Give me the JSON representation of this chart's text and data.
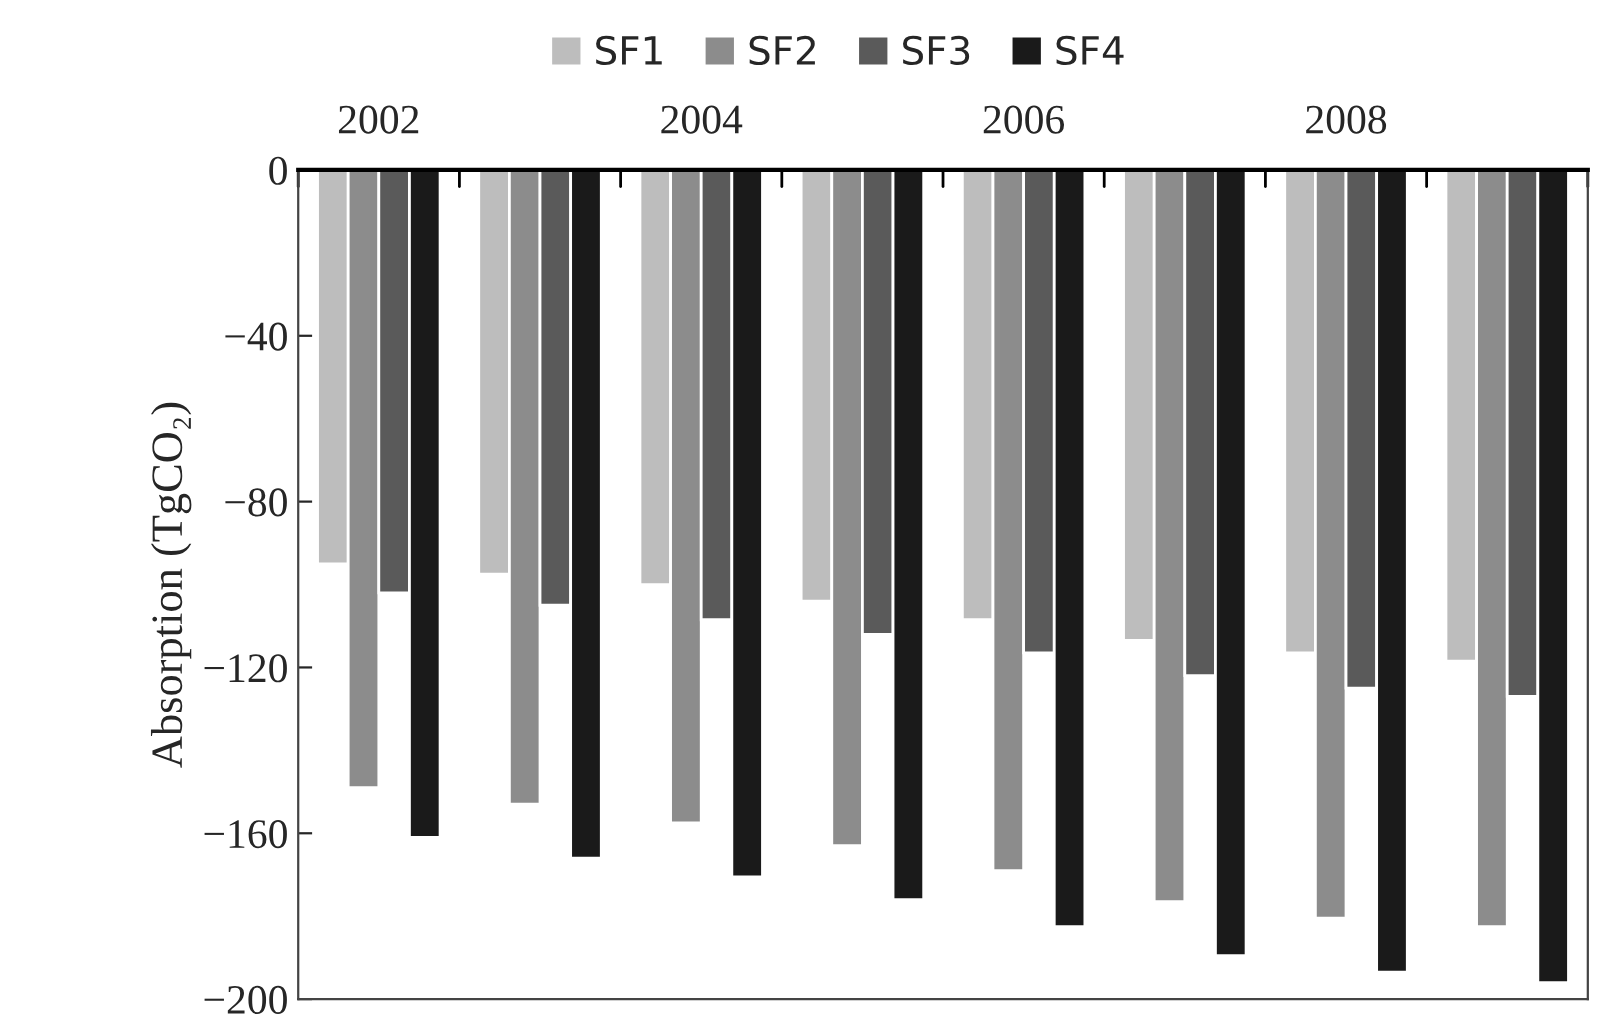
{
  "chart_data": {
    "type": "bar",
    "ylabel": "Absorption (TgCO₂)",
    "categories": [
      "2002",
      null,
      "2004",
      null,
      "2006",
      null,
      "2008",
      null
    ],
    "series": [
      {
        "name": "SF1",
        "color": "#bdbdbd",
        "values": [
          -95,
          -97.5,
          -100,
          -104,
          -108.5,
          -113.5,
          -116.5,
          -118.5
        ]
      },
      {
        "name": "SF2",
        "color": "#8c8c8c",
        "values": [
          -149,
          -153,
          -157.5,
          -163,
          -169,
          -176.5,
          -180.5,
          -182.5
        ]
      },
      {
        "name": "SF3",
        "color": "#5a5a5a",
        "values": [
          -102,
          -105,
          -108.5,
          -112,
          -116.5,
          -122,
          -125,
          -127
        ]
      },
      {
        "name": "SF4",
        "color": "#1a1a1a",
        "values": [
          -161,
          -166,
          -170.5,
          -176,
          -182.5,
          -189.5,
          -193.5,
          -196
        ]
      }
    ],
    "ylim": [
      -200,
      0
    ],
    "yticks": [
      0,
      {
        "value": -40,
        "label": "−40"
      },
      {
        "value": -80,
        "label": "−80"
      },
      {
        "value": -120,
        "label": "−120"
      },
      {
        "value": -160,
        "label": "−160"
      },
      {
        "value": -200,
        "label": "−200"
      }
    ],
    "grid": false,
    "legend": "top"
  }
}
